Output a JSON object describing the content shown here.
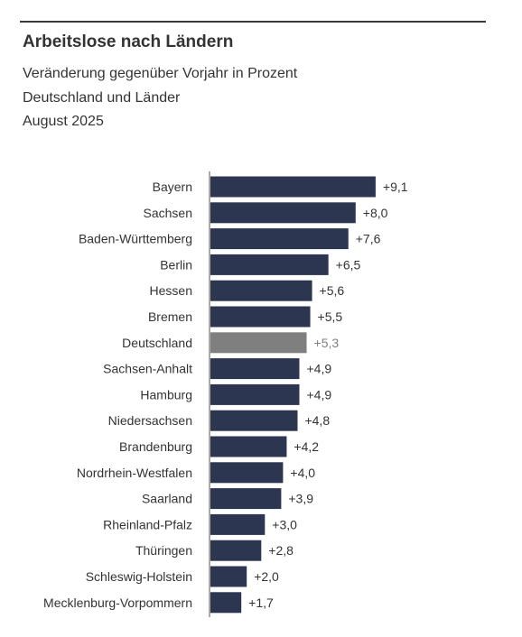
{
  "header": {
    "title": "Arbeitslose nach Ländern",
    "subtitle": "Veränderung gegenüber Vorjahr in Prozent",
    "scope": "Deutschland und Länder",
    "period": "August 2025"
  },
  "colors": {
    "bar": "#2d3650",
    "highlight_bar": "#7f7f7f",
    "label": "#333333",
    "highlight_label": "#7f7f7f"
  },
  "chart_data": {
    "type": "bar",
    "orientation": "horizontal",
    "title": "Arbeitslose nach Ländern",
    "highlight": "Deutschland",
    "categories": [
      "Bayern",
      "Sachsen",
      "Baden-Württemberg",
      "Berlin",
      "Hessen",
      "Bremen",
      "Deutschland",
      "Sachsen-Anhalt",
      "Hamburg",
      "Niedersachsen",
      "Brandenburg",
      "Nordrhein-Westfalen",
      "Saarland",
      "Rheinland-Pfalz",
      "Thüringen",
      "Schleswig-Holstein",
      "Mecklenburg-Vorpommern"
    ],
    "values": [
      9.1,
      8.0,
      7.6,
      6.5,
      5.6,
      5.5,
      5.3,
      4.9,
      4.9,
      4.8,
      4.2,
      4.0,
      3.9,
      3.0,
      2.8,
      2.0,
      1.7
    ],
    "value_labels": [
      "+9,1",
      "+8,0",
      "+7,6",
      "+6,5",
      "+5,6",
      "+5,5",
      "+5,3",
      "+4,9",
      "+4,9",
      "+4,8",
      "+4,2",
      "+4,0",
      "+3,9",
      "+3,0",
      "+2,8",
      "+2,0",
      "+1,7"
    ],
    "xlim": [
      0,
      10
    ],
    "grid": false,
    "legend": "none"
  }
}
